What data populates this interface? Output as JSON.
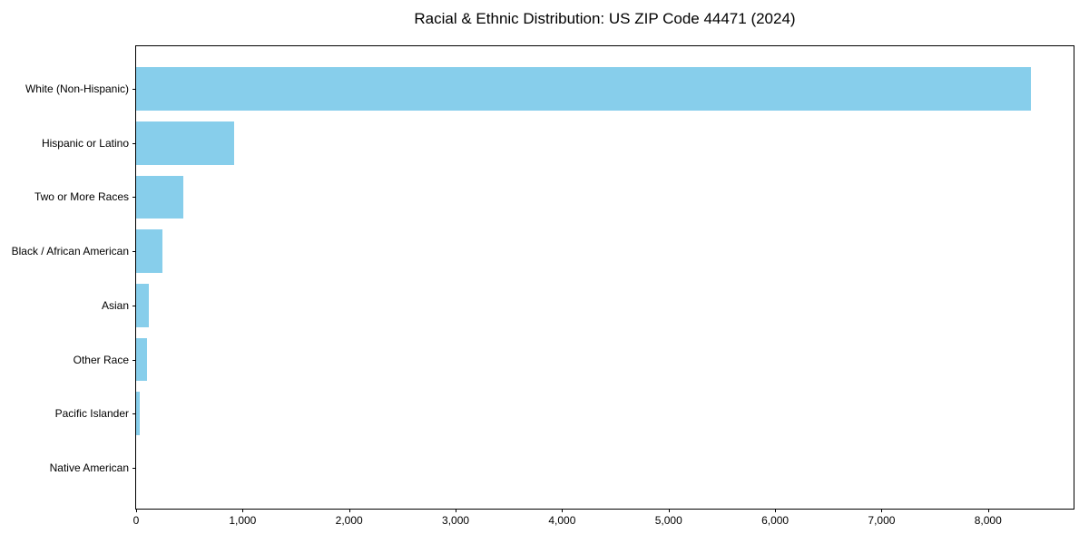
{
  "title": "Racial & Ethnic Distribution: US ZIP Code 44471 (2024)",
  "colors": {
    "bar": "#87CEEB",
    "text": "#000000",
    "spine": "#000000",
    "background": "#ffffff"
  },
  "chart_data": {
    "type": "bar",
    "orientation": "horizontal",
    "title": "Racial & Ethnic Distribution: US ZIP Code 44471 (2024)",
    "xlabel": "",
    "ylabel": "",
    "categories": [
      "White (Non-Hispanic)",
      "Hispanic or Latino",
      "Two or More Races",
      "Black / African American",
      "Asian",
      "Other Race",
      "Pacific Islander",
      "Native American"
    ],
    "values": [
      8400,
      920,
      445,
      245,
      120,
      100,
      35,
      0
    ],
    "xlim": [
      0,
      8820
    ],
    "x_ticks": [
      0,
      1000,
      2000,
      3000,
      4000,
      5000,
      6000,
      7000,
      8000
    ],
    "x_tick_labels": [
      "0",
      "1,000",
      "2,000",
      "3,000",
      "4,000",
      "5,000",
      "6,000",
      "7,000",
      "8,000"
    ],
    "bar_color": "#87CEEB",
    "grid": false,
    "legend": null
  }
}
